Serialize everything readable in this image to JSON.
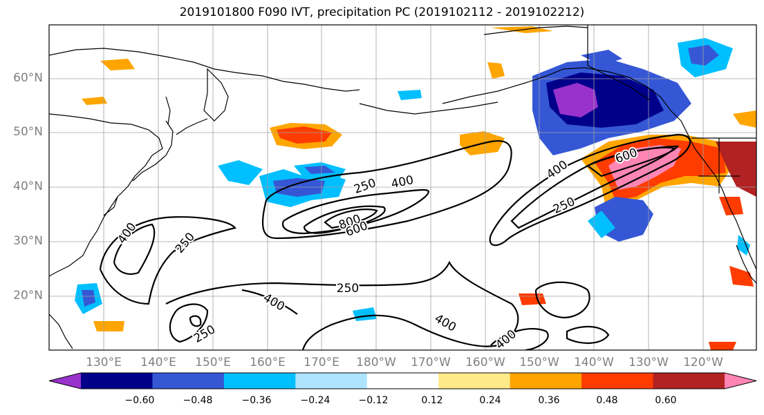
{
  "title": "2019101800 F090 IVT, precipitation PC (2019102112 - 2019102212)",
  "lat_labels": [
    "60°N",
    "50°N",
    "40°N",
    "30°N",
    "20°N"
  ],
  "lon_labels": [
    "130°E",
    "140°E",
    "150°E",
    "160°E",
    "170°E",
    "180°W",
    "170°W",
    "160°W",
    "150°W",
    "140°W",
    "130°W",
    "120°W"
  ],
  "contour_labels": [
    "250",
    "400",
    "800",
    "600",
    "400",
    "600",
    "250",
    "400",
    "250",
    "250",
    "400",
    "400",
    "250",
    "400"
  ],
  "colorbar": {
    "ticks": [
      "−0.60",
      "−0.48",
      "−0.36",
      "−0.24",
      "−0.12",
      "0.12",
      "0.24",
      "0.36",
      "0.48",
      "0.60"
    ],
    "colors": [
      "#9932cc",
      "#00008b",
      "#3557d6",
      "#00bfff",
      "#afe4ff",
      "#ffffff",
      "#ffea8a",
      "#ffa500",
      "#ff3c00",
      "#b22222",
      "#ff85b5"
    ]
  }
}
